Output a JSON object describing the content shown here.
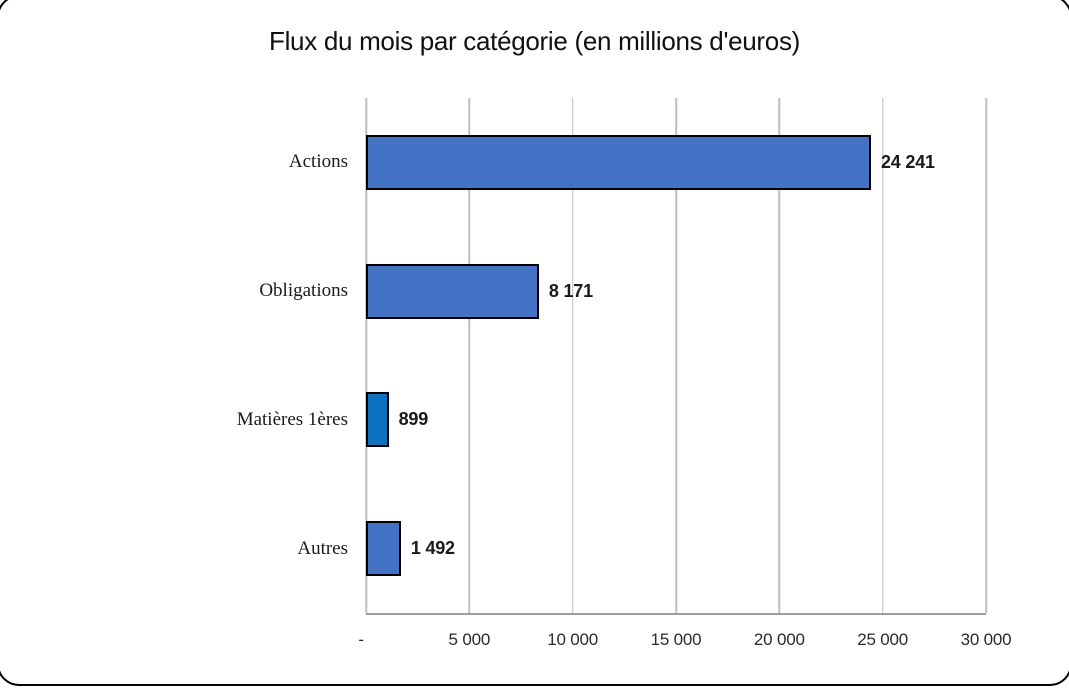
{
  "title": "Flux du mois par catégorie (en millions d'euros)",
  "chart_data": {
    "type": "bar",
    "orientation": "horizontal",
    "title": "Flux du mois par catégorie (en millions d'euros)",
    "categories": [
      "Actions",
      "Obligations",
      "Matières 1ères",
      "Autres"
    ],
    "values": [
      24241,
      8171,
      899,
      1492
    ],
    "data_labels": [
      "24 241",
      "8 171",
      "899",
      "1 492"
    ],
    "bar_colors": [
      "#4472C4",
      "#4472C4",
      "#0E72C0",
      "#4472C4"
    ],
    "xlabel": "",
    "ylabel": "",
    "xlim": [
      0,
      30000
    ],
    "x_ticks": [
      0,
      5000,
      10000,
      15000,
      20000,
      25000,
      30000
    ],
    "x_tick_labels": [
      "-",
      "5 000",
      "10 000",
      "15 000",
      "20 000",
      "25 000",
      "30 000"
    ],
    "grid": "vertical-gridlines-on",
    "legend": false
  },
  "colors": {
    "bar_default": "#4472C4",
    "bar_highlight": "#0E72C0",
    "bar_border": "#000000",
    "gridline": "#BDBDBD",
    "axis_line": "#9D9D9D",
    "frame_border": "#000000",
    "background": "#FFFFFF"
  }
}
